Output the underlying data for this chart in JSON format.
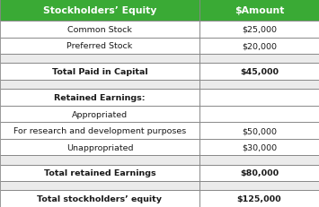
{
  "header": [
    "Stockholders’ Equity",
    "$Amount"
  ],
  "rows": [
    {
      "label": "Common Stock",
      "value": "$25,000",
      "bold": false,
      "empty": false
    },
    {
      "label": "Preferred Stock",
      "value": "$20,000",
      "bold": false,
      "empty": false
    },
    {
      "label": "",
      "value": "",
      "bold": false,
      "empty": true
    },
    {
      "label": "Total Paid in Capital",
      "value": "$45,000",
      "bold": true,
      "empty": false
    },
    {
      "label": "",
      "value": "",
      "bold": false,
      "empty": true
    },
    {
      "label": "Retained Earnings:",
      "value": "",
      "bold": true,
      "empty": false
    },
    {
      "label": "Appropriated",
      "value": "",
      "bold": false,
      "empty": false
    },
    {
      "label": "For research and development purposes",
      "value": "$50,000",
      "bold": false,
      "empty": false
    },
    {
      "label": "Unappropriated",
      "value": "$30,000",
      "bold": false,
      "empty": false
    },
    {
      "label": "",
      "value": "",
      "bold": false,
      "empty": true
    },
    {
      "label": "Total retained Earnings",
      "value": "$80,000",
      "bold": true,
      "empty": false
    },
    {
      "label": "",
      "value": "",
      "bold": false,
      "empty": true
    },
    {
      "label": "Total stockholders’ equity",
      "value": "$125,000",
      "bold": true,
      "empty": false
    }
  ],
  "header_bg": "#3aaa35",
  "header_fg": "#ffffff",
  "row_bg_normal": "#ffffff",
  "row_bg_empty": "#ebebeb",
  "border_color": "#888888",
  "text_color": "#1a1a1a",
  "col_split": 0.625,
  "header_fontsize": 7.8,
  "body_fontsize": 6.8,
  "lw": 0.6
}
